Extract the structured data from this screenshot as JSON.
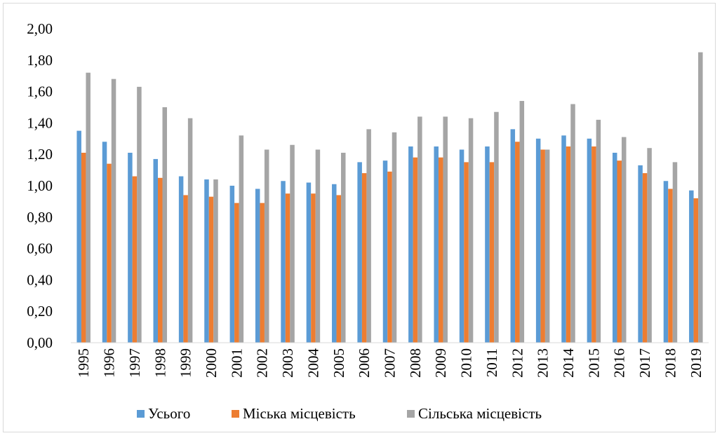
{
  "chart_data": {
    "type": "bar",
    "title": "",
    "xlabel": "",
    "ylabel": "",
    "ylim": [
      0,
      2
    ],
    "y_ticks": [
      "0,00",
      "0,20",
      "0,40",
      "0,60",
      "0,80",
      "1,00",
      "1,20",
      "1,40",
      "1,60",
      "1,80",
      "2,00"
    ],
    "y_tick_values": [
      0,
      0.2,
      0.4,
      0.6,
      0.8,
      1.0,
      1.2,
      1.4,
      1.6,
      1.8,
      2.0
    ],
    "grid": false,
    "legend_position": "bottom",
    "categories": [
      "1995",
      "1996",
      "1997",
      "1998",
      "1999",
      "2000",
      "2001",
      "2002",
      "2003",
      "2004",
      "2005",
      "2006",
      "2007",
      "2008",
      "2009",
      "2010",
      "2011",
      "2012",
      "2013",
      "2014",
      "2015",
      "2016",
      "2017",
      "2018",
      "2019"
    ],
    "series": [
      {
        "name": "Усього",
        "color": "#5b9bd5",
        "values": [
          1.35,
          1.28,
          1.21,
          1.17,
          1.06,
          1.04,
          1.0,
          0.98,
          1.03,
          1.02,
          1.01,
          1.15,
          1.16,
          1.25,
          1.25,
          1.23,
          1.25,
          1.36,
          1.3,
          1.32,
          1.3,
          1.21,
          1.13,
          1.03,
          0.97
        ]
      },
      {
        "name": "Міська місцевість",
        "color": "#ed7d31",
        "values": [
          1.21,
          1.14,
          1.06,
          1.05,
          0.94,
          0.93,
          0.89,
          0.89,
          0.95,
          0.95,
          0.94,
          1.08,
          1.09,
          1.18,
          1.18,
          1.15,
          1.15,
          1.28,
          1.23,
          1.25,
          1.25,
          1.16,
          1.08,
          0.98,
          0.92
        ]
      },
      {
        "name": "Сільська місцевість",
        "color": "#a5a5a5",
        "values": [
          1.72,
          1.68,
          1.63,
          1.5,
          1.43,
          1.04,
          1.32,
          1.23,
          1.26,
          1.23,
          1.21,
          1.36,
          1.34,
          1.44,
          1.44,
          1.43,
          1.47,
          1.54,
          1.23,
          1.52,
          1.42,
          1.31,
          1.24,
          1.15,
          1.85
        ]
      }
    ]
  }
}
